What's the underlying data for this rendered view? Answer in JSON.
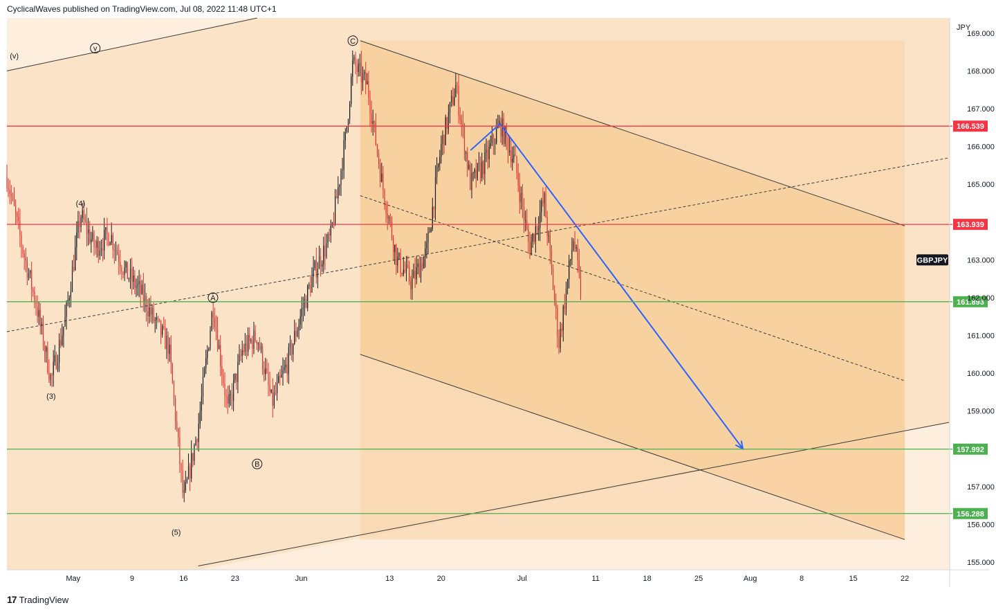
{
  "header": {
    "author": "CyclicalWaves",
    "published_text": "published on TradingView.com, Jul 08, 2022 11:48 UTC+1"
  },
  "footer": {
    "brand_mark": "17",
    "brand": "TradingView"
  },
  "colors": {
    "background_band": "#fbe3c8",
    "channel_fill": "#f9d3a4",
    "candle_down": "#e0302a",
    "candle_up": "#131722",
    "resistance": "#f23645",
    "support": "#4caf50",
    "projection": "#2962ff"
  },
  "chart_data": {
    "type": "candlestick",
    "symbol": "GBPJPY",
    "currency": "JPY",
    "ylim": [
      154.8,
      169.4
    ],
    "y_ticks": [
      {
        "value": 169.0,
        "label": "169.000"
      },
      {
        "value": 168.0,
        "label": "168.000"
      },
      {
        "value": 167.0,
        "label": "167.000"
      },
      {
        "value": 166.0,
        "label": "166.000"
      },
      {
        "value": 165.0,
        "label": "165.000"
      },
      {
        "value": 163.0,
        "label": "163.000"
      },
      {
        "value": 162.0,
        "label": "162.000"
      },
      {
        "value": 161.0,
        "label": "161.000"
      },
      {
        "value": 160.0,
        "label": "160.000"
      },
      {
        "value": 159.0,
        "label": "159.000"
      },
      {
        "value": 157.0,
        "label": "157.000"
      },
      {
        "value": 156.0,
        "label": "156.000"
      },
      {
        "value": 155.0,
        "label": "155.000"
      }
    ],
    "x_ticks": [
      {
        "label": "May",
        "date": "2022-05-01"
      },
      {
        "label": "9",
        "date": "2022-05-09"
      },
      {
        "label": "16",
        "date": "2022-05-16"
      },
      {
        "label": "23",
        "date": "2022-05-23"
      },
      {
        "label": "Jun",
        "date": "2022-06-01"
      },
      {
        "label": "13",
        "date": "2022-06-13"
      },
      {
        "label": "20",
        "date": "2022-06-20"
      },
      {
        "label": "Jul",
        "date": "2022-07-01"
      },
      {
        "label": "11",
        "date": "2022-07-11"
      },
      {
        "label": "18",
        "date": "2022-07-18"
      },
      {
        "label": "25",
        "date": "2022-07-25"
      },
      {
        "label": "Aug",
        "date": "2022-08-01"
      },
      {
        "label": "8",
        "date": "2022-08-08"
      },
      {
        "label": "15",
        "date": "2022-08-15"
      },
      {
        "label": "22",
        "date": "2022-08-22"
      }
    ],
    "horizontal_levels": [
      {
        "value": 166.539,
        "label": "166.539",
        "kind": "resistance"
      },
      {
        "value": 163.939,
        "label": "163.939",
        "kind": "resistance"
      },
      {
        "value": 161.893,
        "label": "161.893",
        "kind": "support"
      },
      {
        "value": 157.992,
        "label": "157.992",
        "kind": "support"
      },
      {
        "value": 156.288,
        "label": "156.288",
        "kind": "support"
      }
    ],
    "price_path": [
      [
        "2022-04-22",
        165.2
      ],
      [
        "2022-04-24",
        163.4
      ],
      [
        "2022-04-26",
        161.8
      ],
      [
        "2022-04-28",
        159.8
      ],
      [
        "2022-04-30",
        161.5
      ],
      [
        "2022-05-02",
        164.2
      ],
      [
        "2022-05-04",
        163.3
      ],
      [
        "2022-05-06",
        163.7
      ],
      [
        "2022-05-08",
        162.7
      ],
      [
        "2022-05-10",
        162.2
      ],
      [
        "2022-05-12",
        161.4
      ],
      [
        "2022-05-14",
        160.7
      ],
      [
        "2022-05-16",
        156.6
      ],
      [
        "2022-05-18",
        158.6
      ],
      [
        "2022-05-20",
        161.8
      ],
      [
        "2022-05-22",
        159.0
      ],
      [
        "2022-05-24",
        160.6
      ],
      [
        "2022-05-26",
        161.0
      ],
      [
        "2022-05-28",
        159.2
      ],
      [
        "2022-05-30",
        160.2
      ],
      [
        "2022-06-01",
        161.6
      ],
      [
        "2022-06-03",
        162.8
      ],
      [
        "2022-06-05",
        163.6
      ],
      [
        "2022-06-07",
        166.2
      ],
      [
        "2022-06-08",
        168.2
      ],
      [
        "2022-06-10",
        167.6
      ],
      [
        "2022-06-12",
        165.0
      ],
      [
        "2022-06-14",
        163.0
      ],
      [
        "2022-06-16",
        162.4
      ],
      [
        "2022-06-18",
        163.2
      ],
      [
        "2022-06-20",
        166.0
      ],
      [
        "2022-06-22",
        167.6
      ],
      [
        "2022-06-24",
        165.0
      ],
      [
        "2022-06-26",
        165.6
      ],
      [
        "2022-06-28",
        166.6
      ],
      [
        "2022-06-30",
        165.6
      ],
      [
        "2022-07-02",
        163.3
      ],
      [
        "2022-07-04",
        164.6
      ],
      [
        "2022-07-06",
        160.8
      ],
      [
        "2022-07-08",
        163.6
      ],
      [
        "2022-07-09",
        162.1
      ]
    ],
    "candles_from": "2022-04-22",
    "candles_to": "2022-07-09",
    "wave_labels": [
      {
        "text": "(v)",
        "date": "2022-04-23",
        "price": 168.4,
        "circled": false
      },
      {
        "text": "v",
        "date": "2022-05-04",
        "price": 168.6,
        "circled": true
      },
      {
        "text": "(4)",
        "date": "2022-05-02",
        "price": 164.5,
        "circled": false
      },
      {
        "text": "(3)",
        "date": "2022-04-28",
        "price": 159.4,
        "circled": false
      },
      {
        "text": "A",
        "date": "2022-05-20",
        "price": 162.0,
        "circled": true
      },
      {
        "text": "B",
        "date": "2022-05-26",
        "price": 157.6,
        "circled": true
      },
      {
        "text": "(5)",
        "date": "2022-05-15",
        "price": 155.8,
        "circled": false
      },
      {
        "text": "C",
        "date": "2022-06-08",
        "price": 168.8,
        "circled": true
      }
    ],
    "channel": {
      "upper": [
        [
          "2022-06-09",
          168.8
        ],
        [
          "2022-08-22",
          163.9
        ]
      ],
      "mid": [
        [
          "2022-06-09",
          164.7
        ],
        [
          "2022-08-22",
          159.8
        ]
      ],
      "lower": [
        [
          "2022-06-09",
          160.5
        ],
        [
          "2022-08-22",
          155.6
        ]
      ]
    },
    "trendlines": [
      {
        "style": "solid",
        "points": [
          [
            "2022-04-22",
            168.0
          ],
          [
            "2022-05-26",
            169.4
          ]
        ]
      },
      {
        "style": "dashed",
        "points": [
          [
            "2022-04-22",
            161.1
          ],
          [
            "2022-08-28",
            165.7
          ]
        ]
      },
      {
        "style": "solid",
        "points": [
          [
            "2022-05-18",
            154.9
          ],
          [
            "2022-08-28",
            158.7
          ]
        ]
      }
    ],
    "projection": {
      "points": [
        [
          "2022-06-24",
          165.9
        ],
        [
          "2022-06-28",
          166.6
        ],
        [
          "2022-07-31",
          158.0
        ]
      ]
    },
    "symbol_tag_price": 163.0
  }
}
